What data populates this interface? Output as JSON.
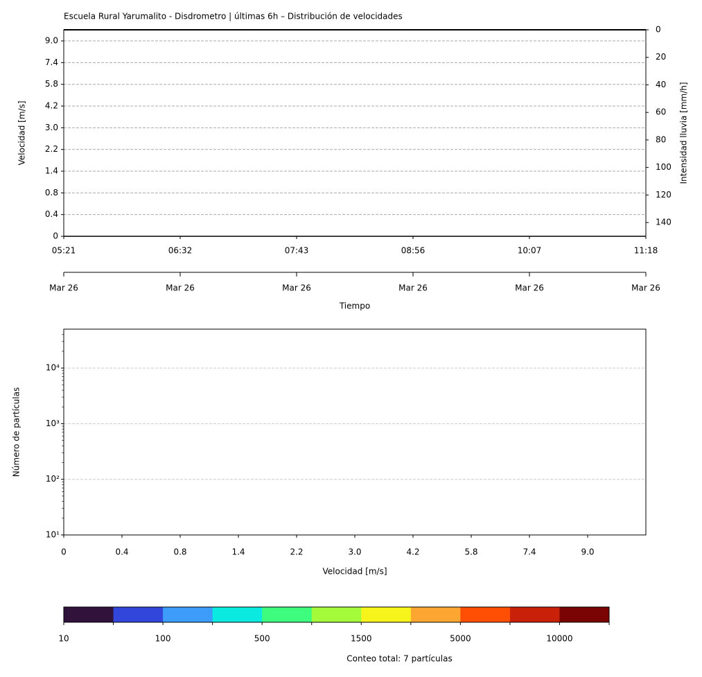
{
  "chart_data": [
    {
      "type": "heatmap",
      "title": "Escuela Rural Yarumalito - Disdrometro | últimas 6h – Distribución de velocidades",
      "ylabel": "Velocidad [m/s]",
      "y2label": "Intensidad lluvia [mm/h]",
      "xlabel": "Tiempo",
      "y_categories": [
        "0",
        "0.4",
        "0.8",
        "1.4",
        "2.2",
        "3.0",
        "4.2",
        "5.8",
        "7.4",
        "9.0"
      ],
      "x_tick_labels": [
        "05:21",
        "06:32",
        "07:43",
        "08:56",
        "10:07",
        "11:18"
      ],
      "x2_tick_labels": [
        "Mar 26",
        "Mar 26",
        "Mar 26",
        "Mar 26",
        "Mar 26",
        "Mar 26"
      ],
      "y2lim": [
        0,
        150
      ],
      "y2ticks": [
        0,
        20,
        40,
        60,
        80,
        100,
        120,
        140
      ],
      "y2_inverted": true,
      "grid": true
    },
    {
      "type": "bar",
      "ylabel": "Número de partículas",
      "xlabel": "Velocidad [m/s]",
      "categories": [
        "0",
        "0.4",
        "0.8",
        "1.4",
        "2.2",
        "3.0",
        "4.2",
        "5.8",
        "7.4",
        "9.0"
      ],
      "log_y": true,
      "ylim": [
        10,
        50000
      ],
      "yticks": [
        {
          "value": 10,
          "label": "10¹"
        },
        {
          "value": 100,
          "label": "10²"
        },
        {
          "value": 1000,
          "label": "10³"
        },
        {
          "value": 10000,
          "label": "10⁴"
        }
      ],
      "grid": true
    },
    {
      "type": "colorbar",
      "colors": [
        "#30123b",
        "#3246dc",
        "#3d9cf9",
        "#0aeae0",
        "#3dfc7e",
        "#a4fb3a",
        "#f7f41c",
        "#fea632",
        "#fe4f05",
        "#c9200a",
        "#7a0403"
      ],
      "ticks": [
        10,
        100,
        500,
        1500,
        5000,
        10000
      ],
      "label": "Conteo total: 7 partículas"
    }
  ]
}
